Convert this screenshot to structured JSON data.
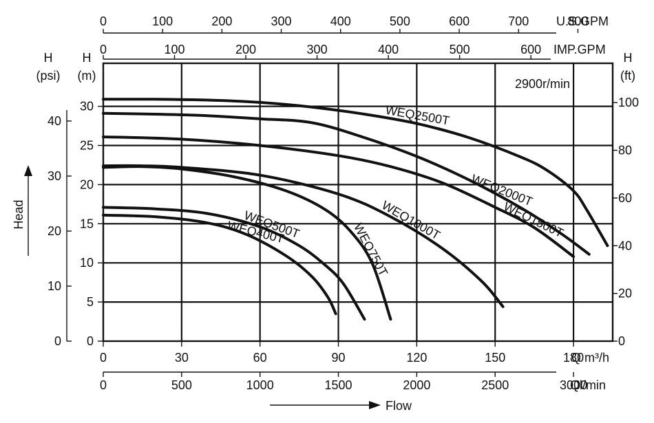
{
  "chart_data": {
    "type": "line",
    "speed_label": "2900r/min",
    "x_axes": {
      "flow_m3h": {
        "label": "Q m³/h",
        "ticks": [
          0,
          30,
          60,
          90,
          120,
          150,
          180
        ],
        "range": [
          0,
          195
        ]
      },
      "flow_lmin": {
        "label": "Ql/min",
        "ticks": [
          0,
          500,
          1000,
          1500,
          2000,
          2500,
          3000
        ]
      },
      "us_gpm": {
        "label": "U.S.GPM",
        "ticks": [
          0,
          100,
          200,
          300,
          400,
          500,
          600,
          700,
          800
        ]
      },
      "imp_gpm": {
        "label": "IMP.GPM",
        "ticks": [
          0,
          100,
          200,
          300,
          400,
          500,
          600
        ]
      }
    },
    "y_axes": {
      "head_m": {
        "label_top": "H",
        "label_unit": "(m)",
        "ticks": [
          0,
          5,
          10,
          15,
          20,
          25,
          30
        ],
        "range": [
          0,
          35.5
        ]
      },
      "head_psi": {
        "label_top": "H",
        "label_unit": "(psi)",
        "ticks": [
          0,
          10,
          20,
          30,
          40
        ]
      },
      "head_ft": {
        "label_top": "H",
        "label_unit": "(ft)",
        "ticks": [
          0,
          20,
          40,
          60,
          80,
          100
        ]
      }
    },
    "side_label": "Head",
    "bottom_label": "Flow",
    "grid": true,
    "series": [
      {
        "name": "WEQ2500T",
        "x": [
          0,
          20,
          40,
          60,
          80,
          100,
          120,
          140,
          160,
          170,
          180,
          185,
          193
        ],
        "y": [
          30.9,
          30.9,
          30.8,
          30.5,
          29.9,
          29.0,
          27.8,
          26.0,
          23.5,
          21.8,
          19.2,
          16.8,
          12.2
        ]
      },
      {
        "name": "WEQ2000T",
        "x": [
          0,
          20,
          40,
          60,
          80,
          100,
          120,
          140,
          160,
          175,
          186
        ],
        "y": [
          29.1,
          29.0,
          28.8,
          28.4,
          27.9,
          26.0,
          23.6,
          20.6,
          17.0,
          13.8,
          11.1
        ]
      },
      {
        "name": "WEQ1500T",
        "x": [
          0,
          30,
          60,
          90,
          110,
          130,
          150,
          165,
          180
        ],
        "y": [
          26.1,
          25.8,
          25.0,
          23.7,
          22.3,
          20.2,
          17.1,
          14.5,
          10.8
        ]
      },
      {
        "name": "WEQ1000T",
        "x": [
          0,
          15,
          30,
          60,
          90,
          110,
          130,
          145,
          153
        ],
        "y": [
          22.4,
          22.4,
          22.2,
          21.2,
          18.8,
          15.9,
          11.8,
          7.6,
          4.4
        ]
      },
      {
        "name": "WEQ750T",
        "x": [
          0,
          15,
          30,
          50,
          70,
          85,
          95,
          103,
          110
        ],
        "y": [
          22.2,
          22.3,
          22.0,
          21.0,
          19.2,
          16.8,
          13.9,
          9.9,
          2.8
        ]
      },
      {
        "name": "WEQ500T",
        "x": [
          0,
          20,
          40,
          60,
          75,
          85,
          92,
          100
        ],
        "y": [
          17.1,
          16.9,
          16.3,
          14.6,
          12.2,
          9.7,
          7.3,
          2.8
        ]
      },
      {
        "name": "WEQ400T",
        "x": [
          0,
          20,
          40,
          55,
          70,
          80,
          86,
          89
        ],
        "y": [
          16.1,
          15.9,
          15.1,
          13.6,
          10.9,
          8.2,
          5.6,
          3.5
        ]
      }
    ]
  }
}
